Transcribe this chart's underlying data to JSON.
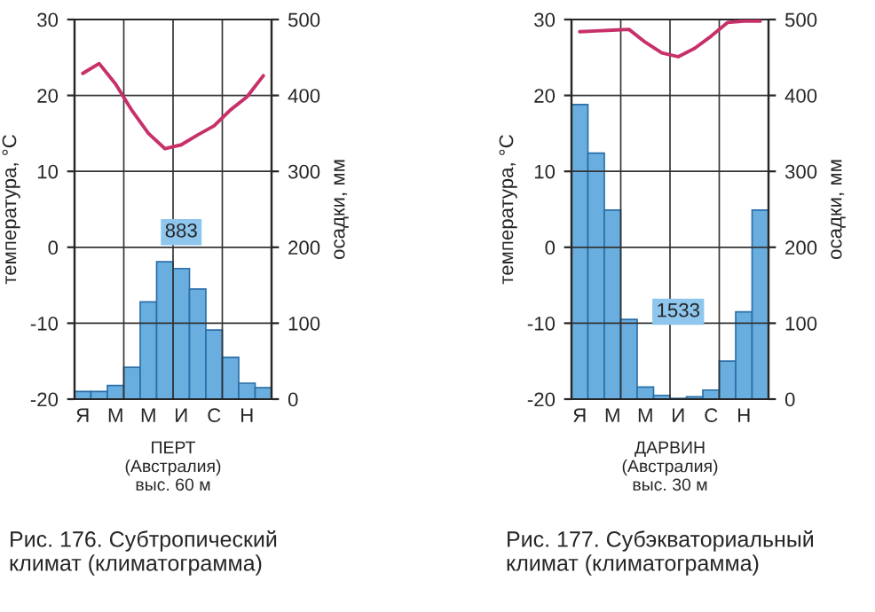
{
  "chart_data": [
    {
      "type": "bar",
      "title": "Рис. 176. Субтропический\nклимат (климатограмма)",
      "xlabel": "ПЕРТ\n(Австралия)\nвыс. 60 м",
      "ylabel": "температура, °С",
      "y2label": "осадки, мм",
      "categories": [
        "Я",
        null,
        "М",
        null,
        "М",
        null,
        "И",
        null,
        "С",
        null,
        "Н",
        null
      ],
      "series": [
        {
          "axis": "y2",
          "color": "#6aaee0",
          "values": [
            10,
            10,
            18,
            42,
            128,
            181,
            172,
            145,
            91,
            55,
            21,
            15
          ]
        },
        {
          "type": "line",
          "color": "#c8306a",
          "values": [
            22.9,
            24.2,
            21.5,
            18.0,
            15.0,
            13.0,
            13.5,
            14.8,
            16.0,
            18.1,
            19.8,
            22.6
          ]
        }
      ],
      "ylim": [
        -20,
        30
      ],
      "yticks": [
        -20,
        -10,
        0,
        10,
        20,
        30
      ],
      "y2lim": [
        0,
        500
      ],
      "y2ticks": [
        0,
        100,
        200,
        300,
        400,
        500
      ],
      "grid": true,
      "marker": "none",
      "line_style": "solid",
      "annotations": [
        {
          "text": "883",
          "x": "И",
          "y": 2
        }
      ]
    },
    {
      "type": "bar",
      "title": "Рис. 177. Субэкваториальный\nклимат (климатограмма)",
      "xlabel": "ДАРВИН\n(Австралия)\nвыс. 30 м",
      "ylabel": "температура, °С",
      "y2label": "осадки, мм",
      "categories": [
        "Я",
        null,
        "М",
        null,
        "М",
        null,
        "И",
        null,
        "С",
        null,
        "Н",
        null
      ],
      "series": [
        {
          "axis": "y2",
          "color": "#6aaee0",
          "values": [
            388,
            324,
            249,
            105,
            16,
            5,
            1,
            3,
            12,
            50,
            115,
            249
          ]
        },
        {
          "type": "line",
          "color": "#c8306a",
          "values": [
            28.4,
            28.5,
            28.6,
            28.7,
            27.0,
            25.6,
            25.1,
            26.2,
            27.8,
            29.6,
            29.8,
            29.8
          ]
        }
      ],
      "ylim": [
        -20,
        30
      ],
      "yticks": [
        -20,
        -10,
        0,
        10,
        20,
        30
      ],
      "y2lim": [
        0,
        500
      ],
      "y2ticks": [
        0,
        100,
        200,
        300,
        400,
        500
      ],
      "grid": true,
      "marker": "none",
      "line_style": "solid",
      "annotations": [
        {
          "text": "1533",
          "x": "И",
          "y": -8.5
        }
      ]
    }
  ]
}
